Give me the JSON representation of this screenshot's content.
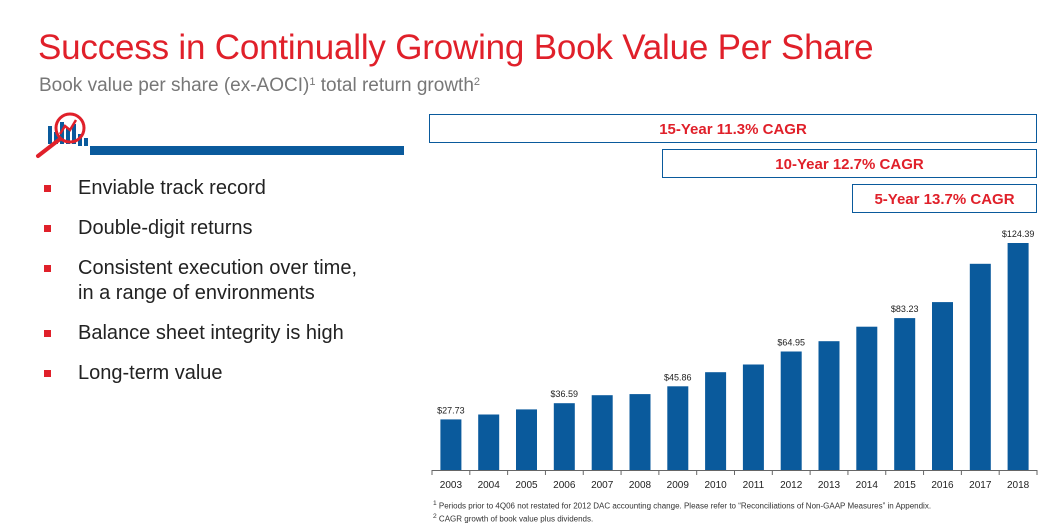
{
  "header": {
    "title": "Success in Continually Growing Book Value Per Share",
    "subtitle_main": "Book value per share (ex-AOCI)",
    "subtitle_sup1": "1",
    "subtitle_mid": " total return growth",
    "subtitle_sup2": "2"
  },
  "bullets": [
    {
      "line1": "Enviable track record",
      "line2": ""
    },
    {
      "line1": "Double-digit returns",
      "line2": ""
    },
    {
      "line1": "Consistent execution over time,",
      "line2": "in a range of environments"
    },
    {
      "line1": "Balance sheet integrity is high",
      "line2": ""
    },
    {
      "line1": "Long-term value",
      "line2": ""
    }
  ],
  "icons": {
    "header_icon": "magnifier-bar-chart-icon"
  },
  "colors": {
    "accent_red": "#e0202a",
    "bar_blue": "#0a5a9c"
  },
  "chart_data": {
    "type": "bar",
    "categories": [
      "2003",
      "2004",
      "2005",
      "2006",
      "2007",
      "2008",
      "2009",
      "2010",
      "2011",
      "2012",
      "2013",
      "2014",
      "2015",
      "2016",
      "2017",
      "2018"
    ],
    "values": [
      27.73,
      30.4,
      33.2,
      36.59,
      41.0,
      41.6,
      45.86,
      53.6,
      57.8,
      64.95,
      70.6,
      78.5,
      83.23,
      92.0,
      113.0,
      124.39
    ],
    "data_labels": [
      {
        "index": 0,
        "text": "$27.73"
      },
      {
        "index": 3,
        "text": "$36.59"
      },
      {
        "index": 6,
        "text": "$45.86"
      },
      {
        "index": 9,
        "text": "$64.95"
      },
      {
        "index": 12,
        "text": "$83.23"
      },
      {
        "index": 15,
        "text": "$124.39"
      }
    ],
    "cagr_bands": [
      {
        "label": "15-Year 11.3% CAGR",
        "from": "2003",
        "to": "2018"
      },
      {
        "label": "10-Year 12.7% CAGR",
        "from": "2009",
        "to": "2018"
      },
      {
        "label": "5-Year 13.7% CAGR",
        "from": "2014",
        "to": "2018"
      }
    ],
    "ylim": [
      0,
      130
    ],
    "grid": false,
    "legend": "none"
  },
  "footnotes": {
    "note1_sup": "1",
    "note1": " Periods prior to 4Q06 not restated for 2012 DAC accounting change. Please refer to “Reconciliations of Non-GAAP Measures” in Appendix.",
    "note2_sup": "2",
    "note2": " CAGR growth of book value plus dividends."
  }
}
